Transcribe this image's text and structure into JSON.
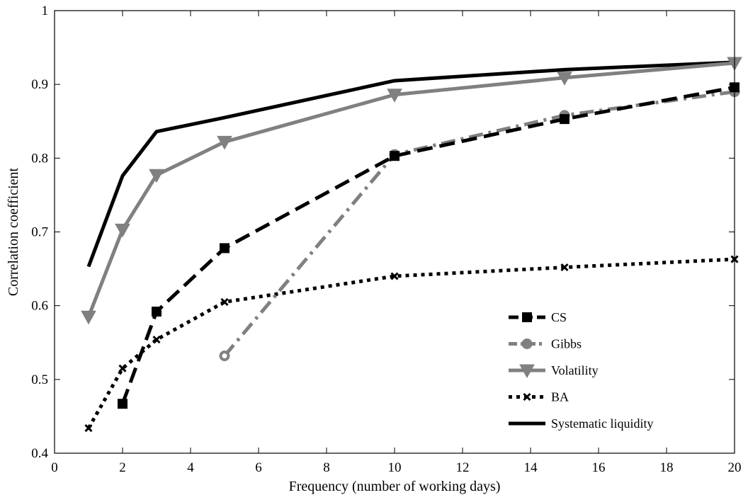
{
  "chart_data": {
    "type": "line",
    "title": "",
    "xlabel": "Frequency (number of working days)",
    "ylabel": "Correlation coefficient",
    "xlim": [
      0,
      20
    ],
    "ylim": [
      0.4,
      1.0
    ],
    "xticks": [
      "0",
      "2",
      "4",
      "6",
      "8",
      "10",
      "12",
      "14",
      "16",
      "18",
      "20"
    ],
    "yticks": [
      "0.4",
      "0.5",
      "0.6",
      "0.7",
      "0.8",
      "0.9",
      "1"
    ],
    "grid": false,
    "legend_position": "bottom-right",
    "series": [
      {
        "name": "CS",
        "color": "#000000",
        "line_style": "dashed",
        "marker": "square",
        "x": [
          2,
          3,
          5,
          10,
          15,
          20
        ],
        "y": [
          0.467,
          0.592,
          0.678,
          0.803,
          0.853,
          0.896
        ]
      },
      {
        "name": "Gibbs",
        "color": "#808080",
        "line_style": "dash-dot",
        "marker": "circle",
        "x": [
          5,
          10,
          15,
          20
        ],
        "y": [
          0.532,
          0.805,
          0.858,
          0.89
        ]
      },
      {
        "name": "Volatility",
        "color": "#808080",
        "line_style": "solid",
        "marker": "triangle-down",
        "x": [
          1,
          2,
          3,
          5,
          10,
          15,
          20
        ],
        "y": [
          0.585,
          0.703,
          0.777,
          0.822,
          0.886,
          0.909,
          0.929
        ]
      },
      {
        "name": "BA",
        "color": "#000000",
        "line_style": "dotted",
        "marker": "x",
        "x": [
          1,
          2,
          3,
          5,
          10,
          15,
          20
        ],
        "y": [
          0.434,
          0.515,
          0.554,
          0.605,
          0.64,
          0.652,
          0.663
        ]
      },
      {
        "name": "Systematic liquidity",
        "color": "#000000",
        "line_style": "solid",
        "marker": "none",
        "x": [
          1,
          2,
          3,
          5,
          10,
          15,
          20
        ],
        "y": [
          0.653,
          0.776,
          0.836,
          0.855,
          0.905,
          0.92,
          0.93
        ]
      }
    ]
  }
}
